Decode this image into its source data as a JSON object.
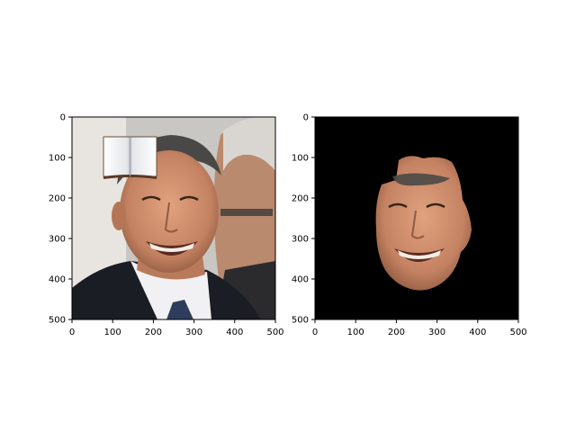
{
  "chart_data": [
    {
      "type": "image",
      "title": "",
      "xlabel": "",
      "ylabel": "",
      "xlim": [
        0,
        500
      ],
      "ylim": [
        500,
        0
      ],
      "xticks": [
        0,
        100,
        200,
        300,
        400,
        500
      ],
      "yticks": [
        0,
        100,
        200,
        300,
        400,
        500
      ],
      "grid": false,
      "content": "photo-face-with-book-overlay"
    },
    {
      "type": "image",
      "title": "",
      "xlabel": "",
      "ylabel": "",
      "xlim": [
        0,
        500
      ],
      "ylim": [
        500,
        0
      ],
      "xticks": [
        0,
        100,
        200,
        300,
        400,
        500
      ],
      "yticks": [
        0,
        100,
        200,
        300,
        400,
        500
      ],
      "grid": false,
      "content": "segmented-face-on-black"
    }
  ],
  "colors": {
    "background_right": "#000000",
    "skin": "#c98a6a",
    "suit": "#1a1d24",
    "shirt": "#f1f1f3"
  }
}
